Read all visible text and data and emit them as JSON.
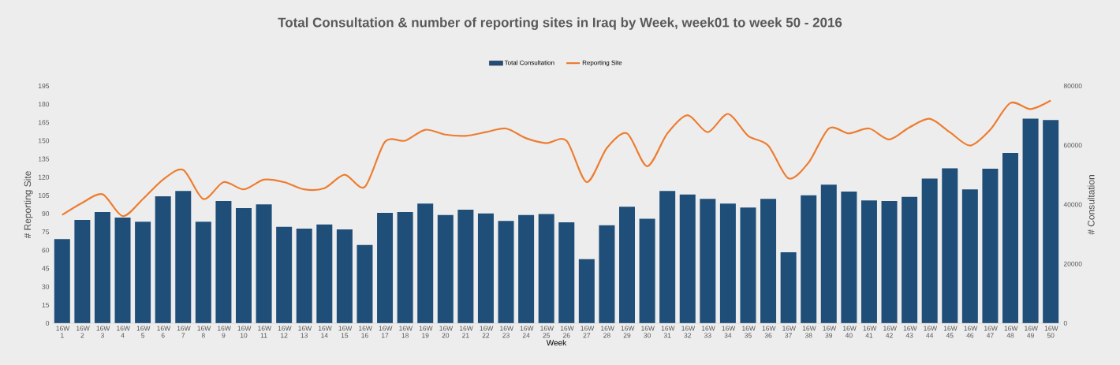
{
  "chart_data": {
    "type": "bar",
    "title": "Total Consultation & number of reporting sites in Iraq by Week,  week01 to week 50 - 2016",
    "xlabel": "Week",
    "ylabel": "# Reporting Site",
    "y2label": "# Consultation",
    "categories": [
      "16W 1",
      "16W 2",
      "16W 3",
      "16W 4",
      "16W 5",
      "16W 6",
      "16W 7",
      "16W 8",
      "16W 9",
      "16W 10",
      "16W 11",
      "16W 12",
      "16W 13",
      "16W 14",
      "16W 15",
      "16W 16",
      "16W 17",
      "16W 18",
      "16W 19",
      "16W 20",
      "16W 21",
      "16W 22",
      "16W 23",
      "16W 24",
      "16W 25",
      "16W 26",
      "16W 27",
      "16W 28",
      "16W 29",
      "16W 30",
      "16W 31",
      "16W 32",
      "16W 33",
      "16W 34",
      "16W 35",
      "16W 36",
      "16W 37",
      "16W 38",
      "16W 39",
      "16W 40",
      "16W 41",
      "16W 42",
      "16W 43",
      "16W 44",
      "16W 45",
      "16W 46",
      "16W 47",
      "16W 48",
      "16W 49",
      "16W 50"
    ],
    "series": [
      {
        "name": "Total Consultation",
        "axis": "y2",
        "color": "#1f4e79",
        "values": [
          28400,
          34800,
          37500,
          35600,
          34200,
          42800,
          44600,
          34200,
          41200,
          38800,
          40100,
          32500,
          31900,
          33300,
          31600,
          26400,
          37200,
          37500,
          40300,
          36500,
          38300,
          37000,
          34500,
          36500,
          36800,
          34000,
          21600,
          33000,
          39300,
          35200,
          44600,
          43400,
          41900,
          40300,
          39000,
          41900,
          23900,
          43100,
          46700,
          44400,
          41400,
          41200,
          42600,
          48800,
          52200,
          45100,
          52100,
          57400,
          69000,
          68500
        ]
      },
      {
        "name": "Reporting Site",
        "type": "line",
        "color": "#ed7d31",
        "values": [
          89,
          99,
          106,
          88,
          102,
          118,
          126,
          102,
          116,
          110,
          118,
          116,
          110,
          111,
          122,
          112,
          149,
          150,
          159,
          155,
          154,
          157,
          160,
          152,
          148,
          150,
          116,
          144,
          156,
          129,
          156,
          171,
          157,
          172,
          154,
          146,
          119,
          132,
          160,
          156,
          160,
          151,
          161,
          168,
          157,
          146,
          159,
          181,
          176,
          183
        ]
      }
    ],
    "ylim": [
      0,
      195
    ],
    "yticks": [
      0,
      15,
      30,
      45,
      60,
      75,
      90,
      105,
      120,
      135,
      150,
      165,
      180,
      195
    ],
    "y2lim": [
      0,
      80000
    ],
    "y2ticks": [
      0,
      20000,
      40000,
      60000,
      80000
    ],
    "legend": "top"
  }
}
